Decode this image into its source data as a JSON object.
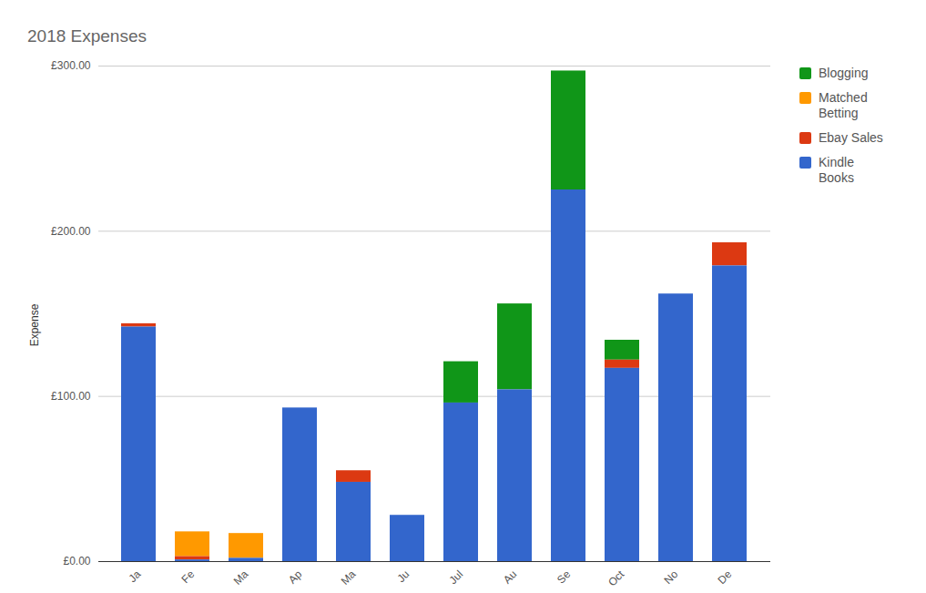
{
  "chart_data": {
    "type": "bar",
    "title": "2018 Expenses",
    "y_label": "Expense",
    "stacked": true,
    "grid": true,
    "legend": "right",
    "categories": [
      "Ja",
      "Fe",
      "Ma",
      "Ap",
      "Ma",
      "Ju",
      "Jul",
      "Au",
      "Se",
      "Oct",
      "No",
      "De"
    ],
    "series": [
      {
        "name": "Blogging",
        "color": "#109618",
        "values": [
          0,
          0,
          0,
          0,
          0,
          0,
          25,
          52,
          72,
          12,
          0,
          0
        ]
      },
      {
        "name": "Matched Betting",
        "color": "#ff9900",
        "values": [
          0,
          15,
          15,
          0,
          0,
          0,
          0,
          0,
          0,
          0,
          0,
          0
        ]
      },
      {
        "name": "Ebay Sales",
        "color": "#dc3912",
        "values": [
          2,
          2,
          0,
          0,
          7,
          0,
          0,
          0,
          0,
          5,
          0,
          14
        ]
      },
      {
        "name": "Kindle Books",
        "color": "#3366cc",
        "values": [
          142,
          1,
          2,
          93,
          48,
          28,
          96,
          104,
          225,
          117,
          162,
          179
        ]
      }
    ],
    "ylim": [
      0,
      300
    ],
    "yticks": [
      {
        "value": 0,
        "label": "£0.00"
      },
      {
        "value": 100,
        "label": "£100.00"
      },
      {
        "value": 200,
        "label": "£200.00"
      },
      {
        "value": 300,
        "label": "£300.00"
      }
    ]
  }
}
